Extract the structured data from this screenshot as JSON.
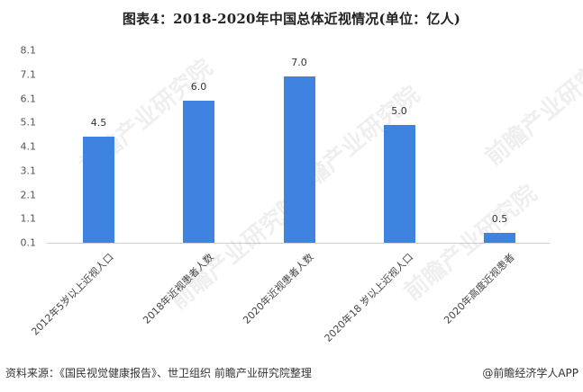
{
  "title": "图表4：2018-2020年中国总体近视情况(单位：亿人)",
  "chart_data": {
    "type": "bar",
    "title": "图表4：2018-2020年中国总体近视情况(单位：亿人)",
    "xlabel": "",
    "ylabel": "",
    "categories": [
      "2012年5岁以上近视人口",
      "2018年近视患者人数",
      "2020年近视患者人数",
      "2020年18 岁以上近视人口",
      "2020年高度近视患者"
    ],
    "values": [
      4.5,
      6.0,
      7.0,
      5.0,
      0.5
    ],
    "data_labels": [
      "4.5",
      "6.0",
      "7.0",
      "5.0",
      "0.5"
    ],
    "yticks": [
      "8.1",
      "7.1",
      "6.1",
      "5.1",
      "4.1",
      "3.1",
      "2.1",
      "1.1",
      "0.1"
    ],
    "ylim": [
      0.1,
      8.1
    ],
    "grid": false,
    "legend": "none",
    "bar_color": "#3F83E0"
  },
  "footer": {
    "source": "资料来源：《国民视觉健康报告》、世卫组织 前瞻产业研究院整理",
    "credit": "@前瞻经济学人APP"
  },
  "watermark_text": "前瞻产业研究院"
}
